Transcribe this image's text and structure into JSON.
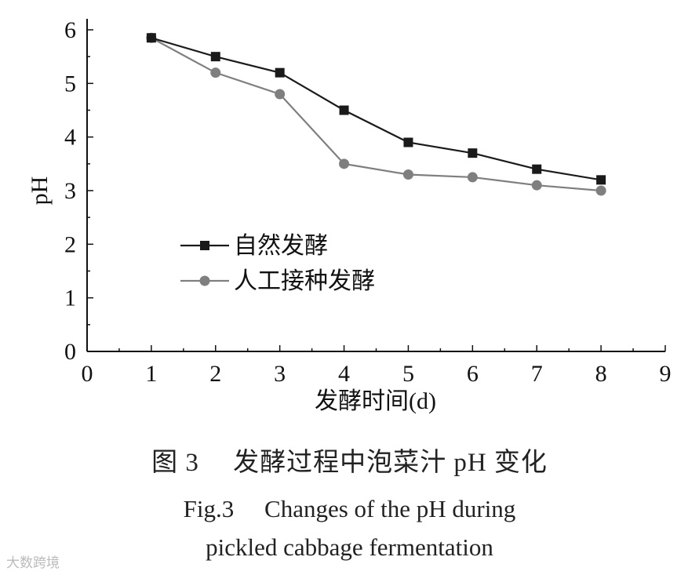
{
  "chart_data": {
    "type": "line",
    "xlabel": "发酵时间(d)",
    "ylabel": "pH",
    "xlim": [
      0,
      9
    ],
    "ylim": [
      0,
      6
    ],
    "xticks": [
      0,
      1,
      2,
      3,
      4,
      5,
      6,
      7,
      8,
      9
    ],
    "yticks": [
      0,
      1,
      2,
      3,
      4,
      5,
      6
    ],
    "legend_position": "middle-left",
    "x": [
      1,
      2,
      3,
      4,
      5,
      6,
      7,
      8
    ],
    "series": [
      {
        "name": "自然发酵",
        "marker": "square",
        "color": "#1a1a1a",
        "values": [
          5.85,
          5.5,
          5.2,
          4.5,
          3.9,
          3.7,
          3.4,
          3.2
        ]
      },
      {
        "name": "人工接种发酵",
        "marker": "circle",
        "color": "#7f7f7f",
        "values": [
          5.85,
          5.2,
          4.8,
          3.5,
          3.3,
          3.25,
          3.1,
          3.0
        ]
      }
    ]
  },
  "caption": {
    "cn": "图 3　 发酵过程中泡菜汁 pH 变化",
    "en_line1": "Fig.3　 Changes of the pH during",
    "en_line2": "pickled cabbage fermentation"
  },
  "watermark": "大数跨境"
}
